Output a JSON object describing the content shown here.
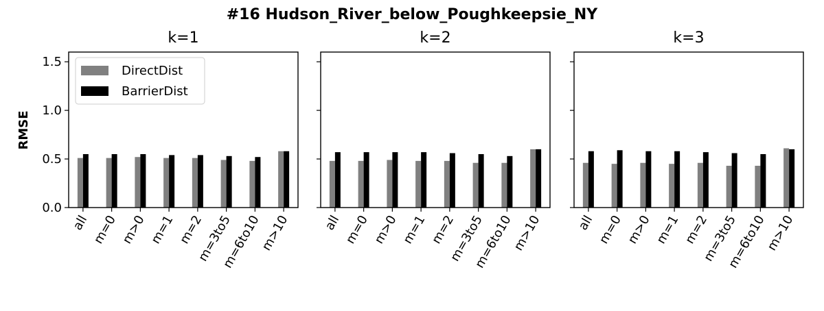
{
  "figure": {
    "title": "#16 Hudson_River_below_Poughkeepsie_NY",
    "ylabel": "RMSE"
  },
  "colors": {
    "DirectDist": "#808080",
    "BarrierDist": "#000000"
  },
  "chart_data": [
    {
      "type": "bar",
      "title": "k=1",
      "categories": [
        "all",
        "m=0",
        "m>0",
        "m=1",
        "m=2",
        "m=3to5",
        "m=6to10",
        "m>10"
      ],
      "series": [
        {
          "name": "DirectDist",
          "values": [
            0.51,
            0.51,
            0.52,
            0.51,
            0.51,
            0.49,
            0.48,
            0.58
          ]
        },
        {
          "name": "BarrierDist",
          "values": [
            0.55,
            0.55,
            0.55,
            0.54,
            0.54,
            0.53,
            0.52,
            0.58
          ]
        }
      ],
      "ylim": [
        0,
        1.6
      ],
      "yticks": [
        0.0,
        0.5,
        1.0,
        1.5
      ],
      "ytick_labels": [
        "0.0",
        "0.5",
        "1.0",
        "1.5"
      ],
      "legend": "top-left"
    },
    {
      "type": "bar",
      "title": "k=2",
      "categories": [
        "all",
        "m=0",
        "m>0",
        "m=1",
        "m=2",
        "m=3to5",
        "m=6to10",
        "m>10"
      ],
      "series": [
        {
          "name": "DirectDist",
          "values": [
            0.48,
            0.48,
            0.49,
            0.48,
            0.48,
            0.46,
            0.46,
            0.6
          ]
        },
        {
          "name": "BarrierDist",
          "values": [
            0.57,
            0.57,
            0.57,
            0.57,
            0.56,
            0.55,
            0.53,
            0.6
          ]
        }
      ],
      "ylim": [
        0,
        1.6
      ],
      "yticks": [
        0.0,
        0.5,
        1.0,
        1.5
      ]
    },
    {
      "type": "bar",
      "title": "k=3",
      "categories": [
        "all",
        "m=0",
        "m>0",
        "m=1",
        "m=2",
        "m=3to5",
        "m=6to10",
        "m>10"
      ],
      "series": [
        {
          "name": "DirectDist",
          "values": [
            0.46,
            0.45,
            0.46,
            0.45,
            0.46,
            0.43,
            0.43,
            0.61
          ]
        },
        {
          "name": "BarrierDist",
          "values": [
            0.58,
            0.59,
            0.58,
            0.58,
            0.57,
            0.56,
            0.55,
            0.6
          ]
        }
      ],
      "ylim": [
        0,
        1.6
      ],
      "yticks": [
        0.0,
        0.5,
        1.0,
        1.5
      ]
    }
  ]
}
